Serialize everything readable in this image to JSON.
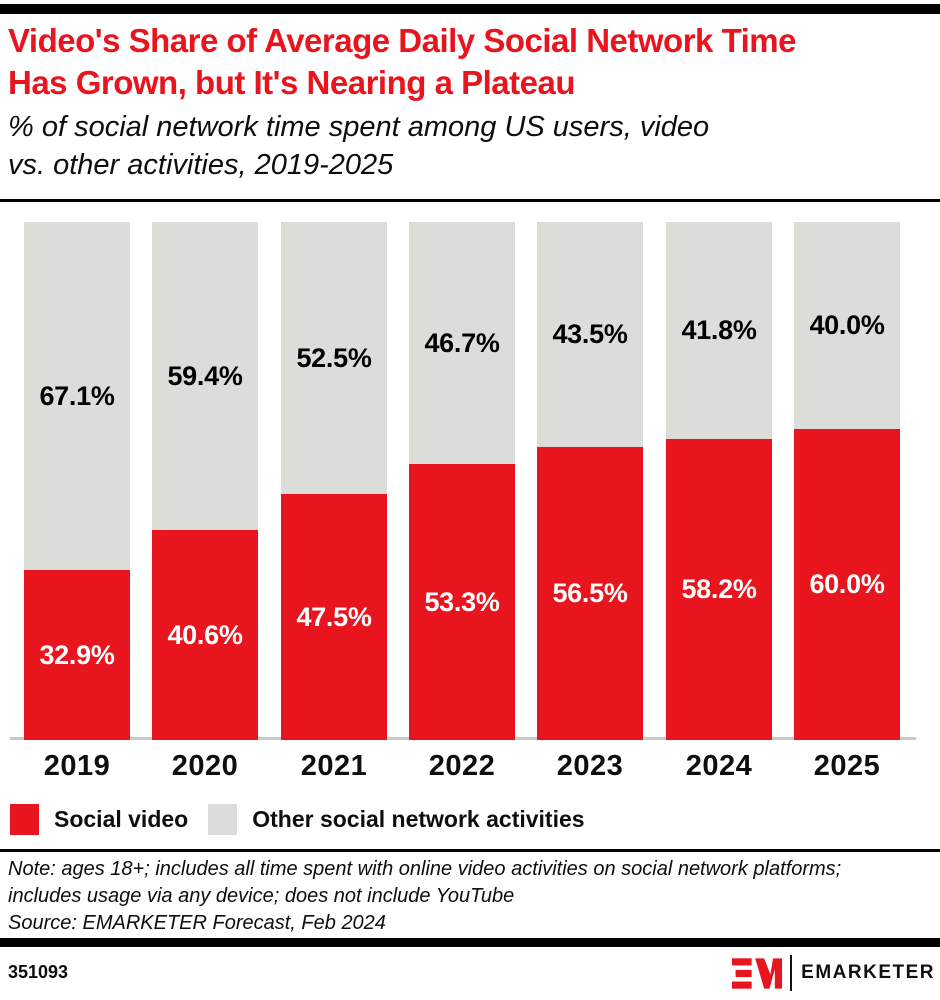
{
  "palette": {
    "red": "#E8141E",
    "gray": "#DCDCD8",
    "black": "#000000",
    "axis_line": "#C9C9C5",
    "white": "#FFFFFF"
  },
  "header": {
    "title": "Video's Share of Average Daily Social Network Time Has Grown, but It's Nearing a Plateau",
    "title_lines": [
      "Video's Share of Average Daily Social Network Time",
      "Has Grown, but It's Nearing a Plateau"
    ],
    "title_color": "#E8141E",
    "subtitle": "% of social network time spent among US users, video vs. other activities, 2019-2025",
    "subtitle_lines": [
      "% of social network time spent among US users, video",
      "vs. other activities, 2019-2025"
    ]
  },
  "chart_data": {
    "type": "bar",
    "stacked": true,
    "title": "Video's Share of Average Daily Social Network Time Has Grown, but It's Nearing a Plateau",
    "subtitle": "% of social network time spent among US users, video vs. other activities, 2019-2025",
    "categories": [
      "2019",
      "2020",
      "2021",
      "2022",
      "2023",
      "2024",
      "2025"
    ],
    "series": [
      {
        "name": "Social video",
        "color": "#E8141E",
        "label_color": "#FFFFFF",
        "values": [
          32.9,
          40.6,
          47.5,
          53.3,
          56.5,
          58.2,
          60.0
        ],
        "labels": [
          "32.9%",
          "40.6%",
          "47.5%",
          "53.3%",
          "56.5%",
          "58.2%",
          "60.0%"
        ]
      },
      {
        "name": "Other social network activities",
        "color": "#DCDCD8",
        "label_color": "#000000",
        "values": [
          67.1,
          59.4,
          52.5,
          46.7,
          43.5,
          41.8,
          40.0
        ],
        "labels": [
          "67.1%",
          "59.4%",
          "52.5%",
          "46.7%",
          "43.5%",
          "41.8%",
          "40.0%"
        ]
      }
    ],
    "xlabel": "",
    "ylabel": "",
    "ylim": [
      0,
      100
    ],
    "grid": false,
    "legend_position": "bottom",
    "value_labels": "centered-in-segment"
  },
  "legend": {
    "items": [
      {
        "label": "Social video",
        "color": "#E8141E"
      },
      {
        "label": "Other social network activities",
        "color": "#DCDCD8"
      }
    ]
  },
  "footnote": {
    "note": "Note: ages 18+; includes all time spent with online video activities on social network platforms; includes usage via any device; does not include YouTube",
    "source": "Source: EMARKETER Forecast, Feb 2024"
  },
  "footer": {
    "chart_id": "351093",
    "brand": "EMARKETER"
  }
}
